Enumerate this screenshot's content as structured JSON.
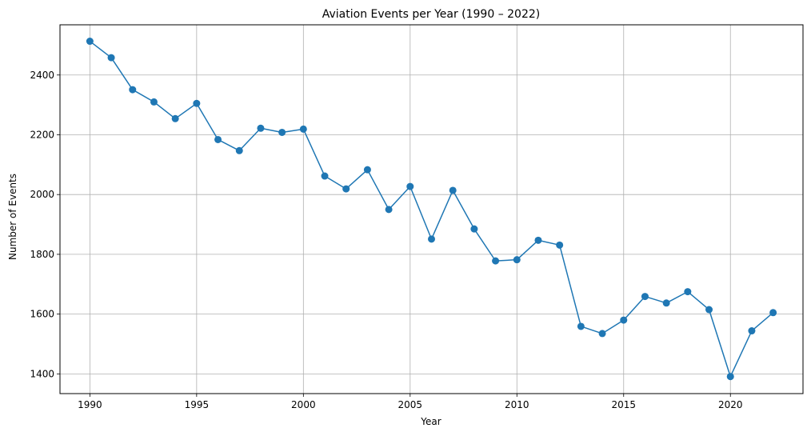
{
  "chart_data": {
    "type": "line",
    "title": "Aviation Events per Year (1990 – 2022)",
    "xlabel": "Year",
    "ylabel": "Number of Events",
    "xlim": [
      1988.6,
      2023.4
    ],
    "ylim": [
      1334,
      2568
    ],
    "xticks": [
      1990,
      1995,
      2000,
      2005,
      2010,
      2015,
      2020
    ],
    "yticks": [
      1400,
      1600,
      1800,
      2000,
      2200,
      2400
    ],
    "grid": true,
    "legend": "none",
    "series": [
      {
        "color": "#1f77b4",
        "marker": "circle",
        "x": [
          1990,
          1991,
          1992,
          1993,
          1994,
          1995,
          1996,
          1997,
          1998,
          1999,
          2000,
          2001,
          2002,
          2003,
          2004,
          2005,
          2006,
          2007,
          2008,
          2009,
          2010,
          2011,
          2012,
          2013,
          2014,
          2015,
          2016,
          2017,
          2018,
          2019,
          2020,
          2021,
          2022
        ],
        "y": [
          2513,
          2458,
          2351,
          2310,
          2254,
          2305,
          2184,
          2147,
          2222,
          2208,
          2219,
          2062,
          2019,
          2083,
          1950,
          2027,
          1851,
          2014,
          1885,
          1778,
          1782,
          1847,
          1831,
          1559,
          1535,
          1580,
          1659,
          1637,
          1675,
          1615,
          1391,
          1544,
          1605
        ]
      }
    ]
  }
}
